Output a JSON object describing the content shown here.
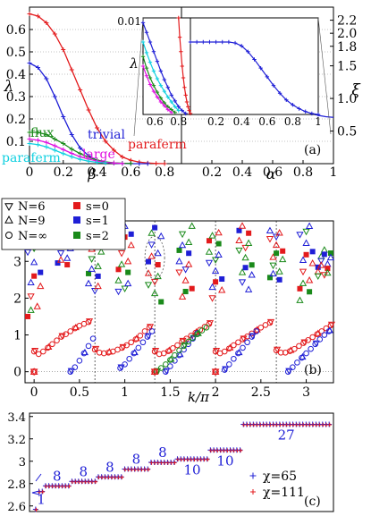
{
  "chart_data": [
    {
      "type": "line",
      "panel_label": "(a)",
      "xlabel_left": "β",
      "xlabel_right": "α",
      "ylabel_left": "λ",
      "ylabel_right": "ξ",
      "x_ticks_left": [
        "0",
        "0.2",
        "0.4",
        "0.6",
        "0.8"
      ],
      "x_ticks_right": [
        "0.2",
        "0.4",
        "0.6",
        "0.8",
        "1"
      ],
      "y_ticks_left": [
        "0.1",
        "0.2",
        "0.3",
        "0.4",
        "0.5",
        "0.6"
      ],
      "y_ticks_right": [
        "0.5",
        "1.0",
        "1.5",
        "1.8",
        "2.0",
        "2.2"
      ],
      "xlim_left": [
        0,
        0.9
      ],
      "ylim_left": [
        0,
        0.7
      ],
      "xlim_right": [
        0,
        1
      ],
      "ylim_right": [
        0,
        2.4
      ],
      "series_left": [
        {
          "name": "paraferm",
          "color": "#e31a1c",
          "x": [
            0,
            0.05,
            0.1,
            0.15,
            0.2,
            0.25,
            0.3,
            0.35,
            0.4,
            0.45,
            0.5,
            0.55,
            0.6,
            0.65,
            0.7,
            0.75,
            0.8
          ],
          "y": [
            0.67,
            0.66,
            0.63,
            0.58,
            0.51,
            0.42,
            0.33,
            0.24,
            0.16,
            0.1,
            0.06,
            0.03,
            0.015,
            0.007,
            0.003,
            0.001,
            0
          ]
        },
        {
          "name": "trivial",
          "color": "#1f1fd6",
          "x": [
            0,
            0.05,
            0.1,
            0.15,
            0.2,
            0.25,
            0.3,
            0.35,
            0.4,
            0.45,
            0.5,
            0.55,
            0.6,
            0.65,
            0.7
          ],
          "y": [
            0.45,
            0.43,
            0.38,
            0.3,
            0.21,
            0.13,
            0.07,
            0.035,
            0.015,
            0.006,
            0.002,
            0.001,
            0,
            0,
            0
          ]
        },
        {
          "name": "flux",
          "color": "#1a8a1a",
          "x": [
            0,
            0.05,
            0.1,
            0.15,
            0.2,
            0.25,
            0.3,
            0.35,
            0.4,
            0.45,
            0.5,
            0.55,
            0.6
          ],
          "y": [
            0.14,
            0.14,
            0.13,
            0.11,
            0.09,
            0.065,
            0.045,
            0.028,
            0.016,
            0.008,
            0.004,
            0.002,
            0.001
          ]
        },
        {
          "name": "large",
          "color": "#e010e0",
          "x": [
            0,
            0.05,
            0.1,
            0.15,
            0.2,
            0.25,
            0.3,
            0.35,
            0.4,
            0.45,
            0.5,
            0.55
          ],
          "y": [
            0.11,
            0.105,
            0.095,
            0.08,
            0.063,
            0.046,
            0.031,
            0.02,
            0.012,
            0.006,
            0.003,
            0.001
          ]
        },
        {
          "name": "paraferm",
          "color": "#10d0e0",
          "x": [
            0,
            0.05,
            0.1,
            0.15,
            0.2,
            0.25,
            0.3,
            0.35,
            0.4,
            0.45
          ],
          "y": [
            0.09,
            0.085,
            0.075,
            0.06,
            0.045,
            0.031,
            0.019,
            0.011,
            0.006,
            0.003
          ]
        }
      ],
      "series_right": [
        {
          "name": "ξ",
          "color": "#1f1fd6",
          "x": [
            0,
            0.05,
            0.1,
            0.15,
            0.2,
            0.25,
            0.3,
            0.35,
            0.4,
            0.45,
            0.5,
            0.55,
            0.6,
            0.65,
            0.7,
            0.75,
            0.8,
            0.85,
            0.9,
            0.95,
            1
          ],
          "y": [
            1.8,
            1.8,
            1.8,
            1.8,
            1.79,
            1.78,
            1.76,
            1.72,
            1.66,
            1.57,
            1.46,
            1.34,
            1.22,
            1.1,
            0.99,
            0.9,
            0.83,
            0.77,
            0.74,
            0.72,
            0.71
          ]
        }
      ],
      "labels": [
        "flux",
        "trivial",
        "large",
        "paraferm",
        "paraferm"
      ],
      "inset": {
        "ylabel": "λ",
        "y_tick_top": "0.01",
        "x_ticks_left": [
          "0.6",
          "0.8"
        ],
        "x_ticks_right": [
          "0.2",
          "0.4",
          "0.6",
          "0.8",
          "1"
        ],
        "xlim_left": [
          0.5,
          0.9
        ],
        "ylim_left": [
          0,
          0.01
        ],
        "series_left": [
          {
            "color": "#e31a1c",
            "x": [
              0.8,
              0.81,
              0.82,
              0.83,
              0.84,
              0.85,
              0.86,
              0.87,
              0.88,
              0.89,
              0.9
            ],
            "y": [
              0.01,
              0.008,
              0.0065,
              0.005,
              0.0038,
              0.0028,
              0.002,
              0.0013,
              0.0008,
              0.0004,
              0.0001
            ]
          },
          {
            "color": "#1f1fd6",
            "x": [
              0.5,
              0.53,
              0.56,
              0.59,
              0.62,
              0.65,
              0.68,
              0.71,
              0.74,
              0.77,
              0.8,
              0.83,
              0.86
            ],
            "y": [
              0.0095,
              0.0085,
              0.0075,
              0.0065,
              0.0055,
              0.0045,
              0.0036,
              0.0028,
              0.002,
              0.0014,
              0.0008,
              0.0004,
              0.0001
            ]
          },
          {
            "color": "#10d0e0",
            "x": [
              0.5,
              0.53,
              0.56,
              0.59,
              0.62,
              0.65,
              0.68,
              0.71,
              0.74,
              0.77,
              0.8
            ],
            "y": [
              0.0075,
              0.0064,
              0.0054,
              0.0045,
              0.0037,
              0.003,
              0.0024,
              0.0018,
              0.0013,
              0.0008,
              0.0004
            ]
          },
          {
            "color": "#1a8a1a",
            "x": [
              0.5,
              0.53,
              0.56,
              0.59,
              0.62,
              0.65,
              0.68,
              0.71,
              0.74,
              0.77
            ],
            "y": [
              0.006,
              0.0048,
              0.0038,
              0.003,
              0.0023,
              0.0017,
              0.0012,
              0.0008,
              0.0005,
              0.0002
            ]
          },
          {
            "color": "#e010e0",
            "x": [
              0.5,
              0.53,
              0.56,
              0.59,
              0.62,
              0.65,
              0.68,
              0.71,
              0.74
            ],
            "y": [
              0.005,
              0.004,
              0.0031,
              0.0024,
              0.0018,
              0.0013,
              0.0009,
              0.0005,
              0.0002
            ]
          }
        ],
        "series_right": [
          {
            "color": "#1f1fd6",
            "x": [
              0,
              0.05,
              0.1,
              0.15,
              0.2,
              0.25,
              0.3,
              0.35,
              0.4,
              0.45,
              0.5,
              0.55,
              0.6,
              0.65,
              0.7,
              0.75,
              0.8,
              0.85,
              0.9,
              0.95,
              1
            ],
            "y": [
              0.0075,
              0.0075,
              0.0075,
              0.0075,
              0.0075,
              0.0075,
              0.0075,
              0.0074,
              0.0071,
              0.0065,
              0.0057,
              0.0048,
              0.0039,
              0.003,
              0.0022,
              0.0015,
              0.001,
              0.0006,
              0.0003,
              0.0001,
              0
            ]
          }
        ]
      }
    },
    {
      "type": "scatter",
      "panel_label": "(b)",
      "xlabel": "k/π",
      "x_ticks": [
        "0",
        "0.5",
        "1",
        "1.5",
        "2",
        "2.5",
        "3"
      ],
      "y_ticks": [
        "0",
        "1",
        "2",
        "3"
      ],
      "xlim": [
        -0.1,
        3.3
      ],
      "ylim": [
        -0.3,
        4.1
      ],
      "legend_markers": [
        "N=6",
        "N=9",
        "N=∞"
      ],
      "legend_colors": [
        "s=0",
        "s=1",
        "s=2"
      ],
      "colors": {
        "s0": "#e31a1c",
        "s1": "#1f1fd6",
        "s2": "#1a8a1a"
      },
      "branches": [
        {
          "s": "s0",
          "marker": "circle",
          "x": [
            0,
            0.05,
            0.1,
            0.15,
            0.2,
            0.25,
            0.3,
            0.35,
            0.4,
            0.45,
            0.5,
            0.55,
            0.6
          ],
          "y": [
            0.55,
            0.48,
            0.55,
            0.65,
            0.75,
            0.85,
            0.95,
            1.02,
            1.1,
            1.18,
            1.25,
            1.3,
            1.35
          ]
        },
        {
          "s": "s0",
          "marker": "circle",
          "x": [
            0.67,
            0.72,
            0.77,
            0.82,
            0.87,
            0.92,
            0.97,
            1.02,
            1.07,
            1.12,
            1.17,
            1.22,
            1.27
          ],
          "y": [
            0.6,
            0.52,
            0.5,
            0.52,
            0.55,
            0.6,
            0.65,
            0.72,
            0.8,
            0.88,
            0.98,
            1.1,
            1.2
          ]
        },
        {
          "s": "s0",
          "marker": "circle",
          "x": [
            1.33,
            1.38,
            1.43,
            1.48,
            1.53,
            1.58,
            1.63,
            1.68,
            1.73,
            1.78,
            1.83,
            1.88,
            1.93
          ],
          "y": [
            0.55,
            0.48,
            0.5,
            0.56,
            0.64,
            0.72,
            0.82,
            0.9,
            0.98,
            1.06,
            1.14,
            1.22,
            1.3
          ]
        },
        {
          "s": "s0",
          "marker": "circle",
          "x": [
            2.0,
            2.05,
            2.1,
            2.15,
            2.2,
            2.25,
            2.3,
            2.35,
            2.4,
            2.45,
            2.5,
            2.55,
            2.6
          ],
          "y": [
            0.55,
            0.5,
            0.55,
            0.63,
            0.72,
            0.8,
            0.88,
            0.96,
            1.04,
            1.12,
            1.2,
            1.27,
            1.33
          ]
        },
        {
          "s": "s0",
          "marker": "circle",
          "x": [
            2.67,
            2.72,
            2.77,
            2.82,
            2.87,
            2.92,
            2.97,
            3.02,
            3.07,
            3.12,
            3.17,
            3.22,
            3.27
          ],
          "y": [
            0.58,
            0.52,
            0.52,
            0.56,
            0.62,
            0.7,
            0.78,
            0.86,
            0.94,
            1.02,
            1.1,
            1.18,
            1.26
          ]
        },
        {
          "s": "s1",
          "marker": "circle",
          "x": [
            0.4,
            0.45,
            0.5,
            0.55,
            0.6,
            0.65
          ],
          "y": [
            0.0,
            0.12,
            0.3,
            0.5,
            0.7,
            0.9
          ]
        },
        {
          "s": "s1",
          "marker": "circle",
          "x": [
            0.95,
            1.0,
            1.05,
            1.1,
            1.15,
            1.2,
            1.25,
            1.3
          ],
          "y": [
            0.1,
            0.2,
            0.35,
            0.5,
            0.65,
            0.8,
            0.95,
            1.1
          ]
        },
        {
          "s": "s1",
          "marker": "circle",
          "x": [
            1.45,
            1.5,
            1.55,
            1.6,
            1.65,
            1.7,
            1.75,
            1.8
          ],
          "y": [
            0.0,
            0.15,
            0.3,
            0.45,
            0.6,
            0.75,
            0.9,
            1.05
          ]
        },
        {
          "s": "s1",
          "marker": "circle",
          "x": [
            2.1,
            2.15,
            2.2,
            2.25,
            2.3,
            2.35,
            2.4,
            2.45
          ],
          "y": [
            0.05,
            0.2,
            0.35,
            0.5,
            0.65,
            0.8,
            0.95,
            1.1
          ]
        },
        {
          "s": "s1",
          "marker": "circle",
          "x": [
            2.8,
            2.85,
            2.9,
            2.95,
            3.0,
            3.05,
            3.1,
            3.15,
            3.2,
            3.25
          ],
          "y": [
            0.0,
            0.12,
            0.25,
            0.38,
            0.5,
            0.62,
            0.75,
            0.88,
            1.0,
            1.1
          ]
        },
        {
          "s": "s2",
          "marker": "circle",
          "x": [
            1.35,
            1.4,
            1.45,
            1.5,
            1.55,
            1.6,
            1.65,
            1.7,
            1.75,
            1.8,
            1.85,
            1.9
          ],
          "y": [
            0.0,
            0.1,
            0.2,
            0.32,
            0.45,
            0.58,
            0.7,
            0.82,
            0.92,
            1.02,
            1.12,
            1.2
          ]
        }
      ],
      "zero_points": [
        {
          "x": 0,
          "y": 0
        },
        {
          "x": 1.33,
          "y": 0
        },
        {
          "x": 2.0,
          "y": 0
        }
      ],
      "upper_clusters": [
        {
          "x": 0,
          "y_min": 1.5,
          "y_max": 4.0
        },
        {
          "x": 0.33,
          "y_min": 2.8,
          "y_max": 4.0
        },
        {
          "x": 0.67,
          "y_min": 2.2,
          "y_max": 4.0
        },
        {
          "x": 1.0,
          "y_min": 2.0,
          "y_max": 4.0
        },
        {
          "x": 1.33,
          "y_min": 1.9,
          "y_max": 4.0
        },
        {
          "x": 1.67,
          "y_min": 2.0,
          "y_max": 4.0
        },
        {
          "x": 2.0,
          "y_min": 2.0,
          "y_max": 4.0
        },
        {
          "x": 2.33,
          "y_min": 2.2,
          "y_max": 4.0
        },
        {
          "x": 2.67,
          "y_min": 2.5,
          "y_max": 4.0
        },
        {
          "x": 3.0,
          "y_min": 1.9,
          "y_max": 4.0
        },
        {
          "x": 3.2,
          "y_min": 2.6,
          "y_max": 3.4
        }
      ]
    },
    {
      "type": "scatter",
      "panel_label": "(c)",
      "y_ticks": [
        "2.6",
        "2.8",
        "3",
        "3.2",
        "3.4"
      ],
      "ylim": [
        2.55,
        3.43
      ],
      "series": [
        {
          "name": "χ=65",
          "color": "#1f1fd6",
          "marker": "plus"
        },
        {
          "name": "χ=111",
          "color": "#e31a1c",
          "marker": "plus"
        }
      ],
      "plateaus": [
        {
          "count": 1,
          "y": 2.57,
          "label": "1"
        },
        {
          "count": 2,
          "y": 2.73,
          "label": ""
        },
        {
          "count": 8,
          "y": 2.78,
          "label": "8"
        },
        {
          "count": 8,
          "y": 2.82,
          "label": "8"
        },
        {
          "count": 8,
          "y": 2.86,
          "label": "8"
        },
        {
          "count": 8,
          "y": 2.93,
          "label": "8"
        },
        {
          "count": 8,
          "y": 2.99,
          "label": "8"
        },
        {
          "count": 10,
          "y": 3.02,
          "label": "10"
        },
        {
          "count": 10,
          "y": 3.1,
          "label": "10"
        },
        {
          "count": 27,
          "y": 3.33,
          "label": "27"
        }
      ]
    }
  ]
}
